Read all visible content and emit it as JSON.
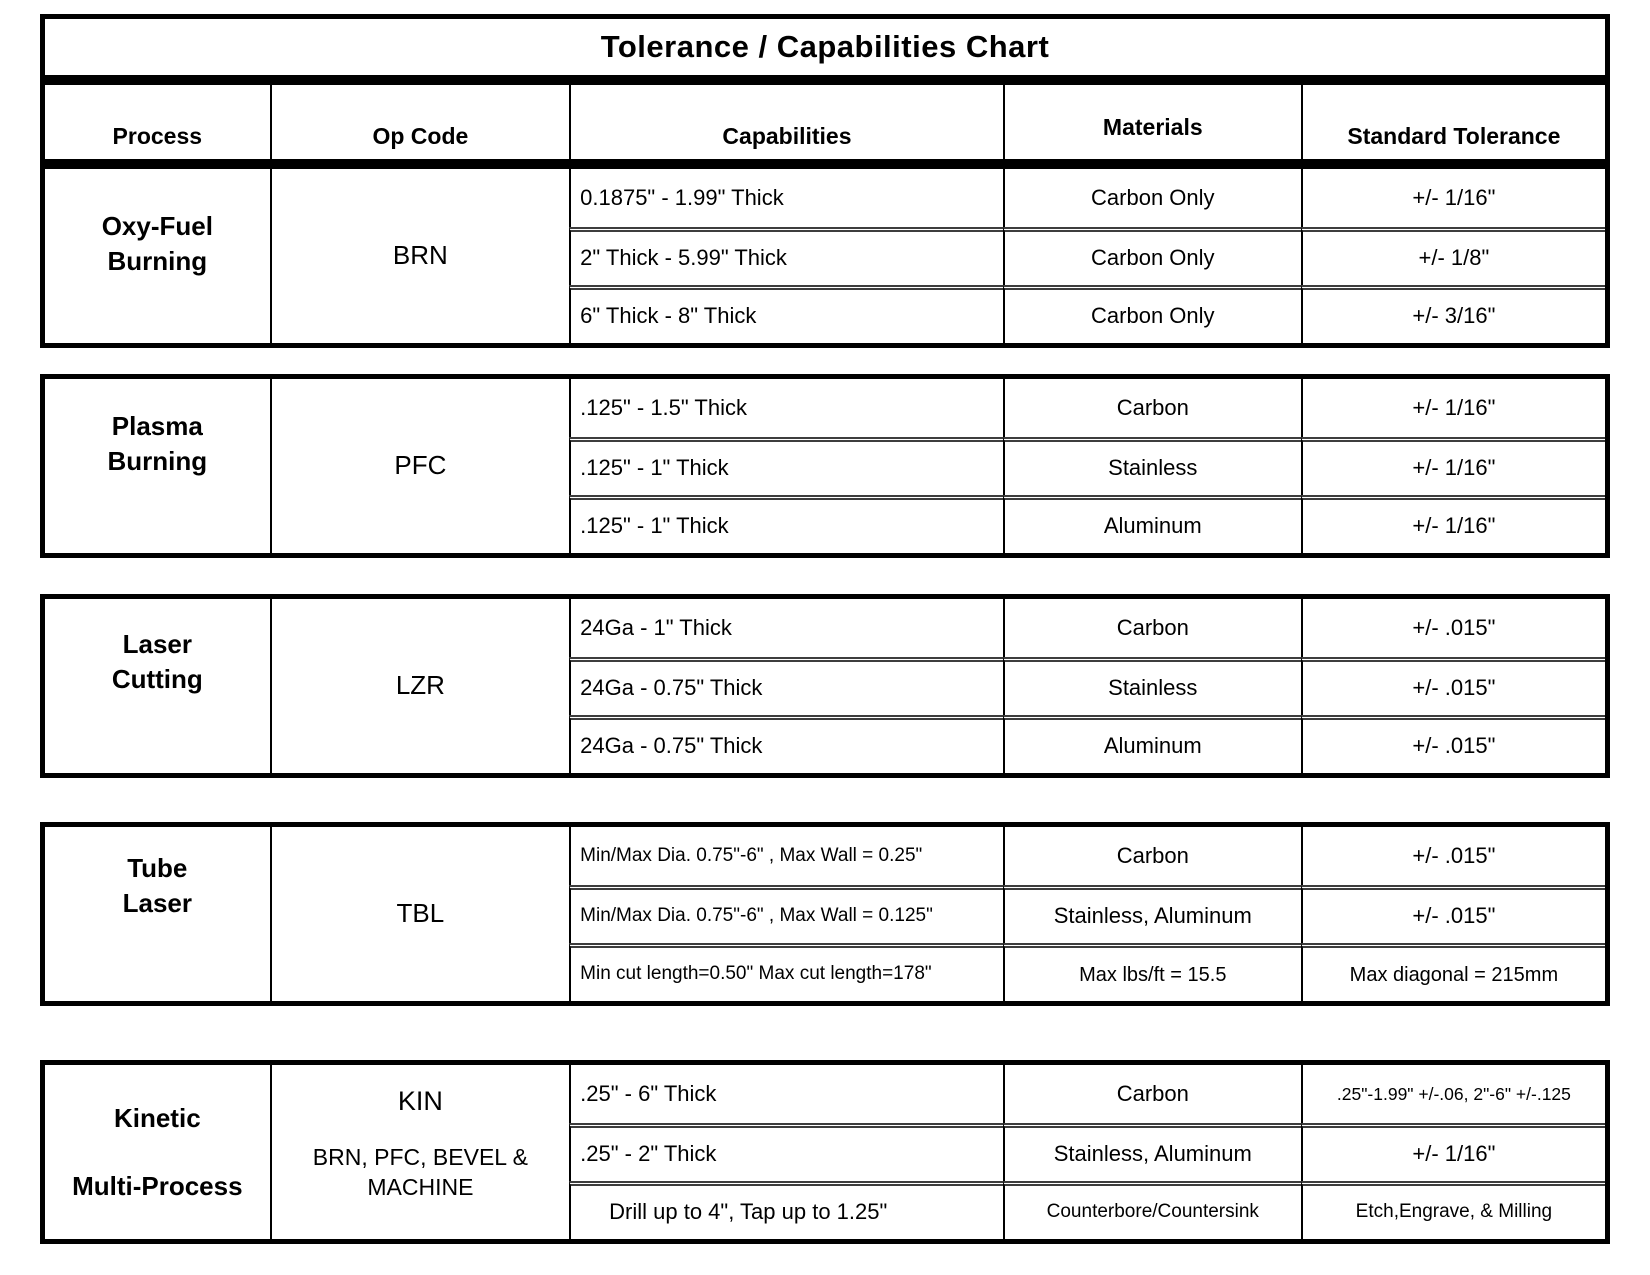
{
  "title": "Tolerance / Capabilities Chart",
  "headers": {
    "process": "Process",
    "op_code": "Op Code",
    "capabilities": "Capabilities",
    "materials": "Materials",
    "standard_tolerance": "Standard Tolerance"
  },
  "sections": [
    {
      "process": "Oxy-Fuel\nBurning",
      "op_code": "BRN",
      "rows": [
        {
          "capability": "0.1875\" - 1.99\" Thick",
          "material": "Carbon Only",
          "tolerance": "+/- 1/16\""
        },
        {
          "capability": "2\" Thick - 5.99\" Thick",
          "material": "Carbon Only",
          "tolerance": "+/- 1/8\""
        },
        {
          "capability": "6\" Thick - 8\" Thick",
          "material": "Carbon Only",
          "tolerance": "+/- 3/16\""
        }
      ]
    },
    {
      "process": "Plasma\nBurning",
      "op_code": "PFC",
      "rows": [
        {
          "capability": ".125\" - 1.5\" Thick",
          "material": "Carbon",
          "tolerance": "+/- 1/16\""
        },
        {
          "capability": ".125\" - 1\" Thick",
          "material": "Stainless",
          "tolerance": "+/- 1/16\""
        },
        {
          "capability": ".125\" - 1\" Thick",
          "material": "Aluminum",
          "tolerance": "+/- 1/16\""
        }
      ]
    },
    {
      "process": "Laser\nCutting",
      "op_code": "LZR",
      "rows": [
        {
          "capability": "24Ga - 1\" Thick",
          "material": "Carbon",
          "tolerance": "+/- .015\""
        },
        {
          "capability": "24Ga - 0.75\" Thick",
          "material": "Stainless",
          "tolerance": "+/- .015\""
        },
        {
          "capability": "24Ga - 0.75\" Thick",
          "material": "Aluminum",
          "tolerance": "+/- .015\""
        }
      ]
    },
    {
      "process": "Tube\nLaser",
      "op_code": "TBL",
      "rows": [
        {
          "capability": "Min/Max Dia. 0.75\"-6\" , Max Wall = 0.25\"",
          "material": "Carbon",
          "tolerance": "+/- .015\""
        },
        {
          "capability": "Min/Max Dia. 0.75\"-6\" , Max Wall = 0.125\"",
          "material": "Stainless, Aluminum",
          "tolerance": "+/- .015\""
        },
        {
          "capability": "Min cut length=0.50\" Max cut length=178\"",
          "material": "Max lbs/ft = 15.5",
          "tolerance": "Max diagonal = 215mm"
        }
      ]
    },
    {
      "process": "Kinetic\nMulti-Process",
      "op_code": "KIN",
      "op_code_extra": "BRN, PFC, BEVEL &\nMACHINE",
      "rows": [
        {
          "capability": ".25\" - 6\" Thick",
          "material": "Carbon",
          "tolerance": ".25\"-1.99\" +/-.06, 2\"-6\" +/-.125"
        },
        {
          "capability": ".25\" - 2\" Thick",
          "material": "Stainless, Aluminum",
          "tolerance": "+/- 1/16\""
        },
        {
          "capability": "Drill up to 4\", Tap up to 1.25\"",
          "material": "Counterbore/Countersink",
          "tolerance": "Etch,Engrave, & Milling"
        }
      ]
    }
  ]
}
